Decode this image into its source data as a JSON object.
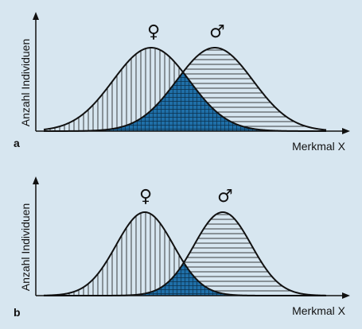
{
  "panels": [
    {
      "letter": "a",
      "ylabel": "Anzahl Individuen",
      "xlabel": "Merkmal X",
      "female_symbol": "♀",
      "male_symbol": "♂",
      "distributions": {
        "female_mean": 190,
        "female_sd": 48,
        "male_mean": 270,
        "male_sd": 48
      }
    },
    {
      "letter": "b",
      "ylabel": "Anzahl Individuen",
      "xlabel": "Merkmal X",
      "female_symbol": "♀",
      "male_symbol": "♂",
      "distributions": {
        "female_mean": 182,
        "female_sd": 36,
        "male_mean": 280,
        "male_sd": 36
      }
    }
  ],
  "colors": {
    "background": "#d7e6f0",
    "overlap": "#1f6fa8",
    "line": "#111111"
  }
}
